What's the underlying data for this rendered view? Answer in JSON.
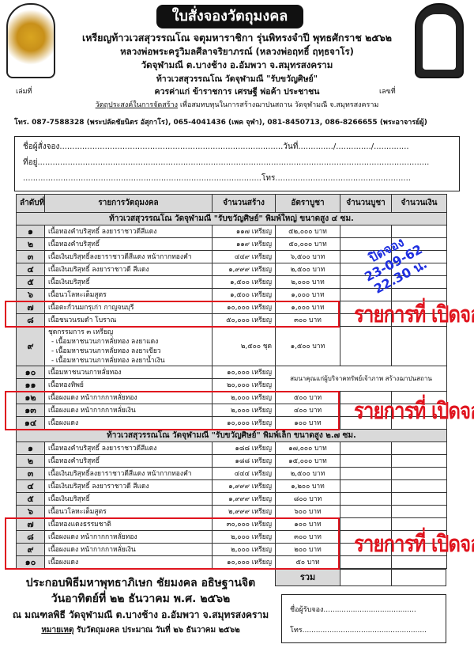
{
  "title": "ใบสั่งจองวัตถุมงคล",
  "header_lines": [
    "เหรียญท้าวเวสสุวรรณโณ จตุมหาราชิกา รุ่นพิทรงจำปี พุทธศักราช ๒๕๖๒",
    "หลวงพ่อพระครูวิมลศีลาจริยาภรณ์ (หลวงพ่อฤทธิ์ ฤทฺธจาโร)",
    "วัดจุฬามณี ต.บางช้าง อ.อัมพวา จ.สมุทรสงคราม",
    "ท้าวเวสสุวรรณโณ วัดจุฬามณี \"รับขวัญศิษย์\"",
    "ควรค่าแก่ ข้าราชการ เศรษฐี พ่อค้า ประชาชน"
  ],
  "purpose_label": "วัตถุประสงค์ในการจัดสร้าง",
  "purpose_text": "เพื่อสมทบทุนในการสร้างฌาปนสถาน วัดจุฬามณี จ.สมุทรสงคราม",
  "phone_line": "โทร. 087-7588328 (พระปลัดชัยนิตร อัสุกาโร), 065-4041436 (เพค จุฬา), 081-8450713, 086-8266655 (พระอาจารย์ผู้)",
  "book_no_label": "เล่มที่",
  "doc_no_label": "เลขที่",
  "form": {
    "name": "ชื่อผู้สั่งจอง.........................................................................................วันที่............../............../..............",
    "address": "ที่อยู่............................................................................................................................................................",
    "phone": "...............................................................................................โทร......................................................"
  },
  "columns": [
    "ลำดับที่",
    "รายการวัตถุมงคล",
    "จำนวนสร้าง",
    "อัตราบูชา",
    "จำนวนบูชา",
    "จำนวนเงิน"
  ],
  "section1": "ท้าวเวสสุวรรณโณ วัดจุฬามณี \"รับขวัญศิษย์\" พิมพ์ใหญ่ ขนาดสูง ๔ ซม.",
  "rows1": [
    [
      "๑",
      "เนื้อทองคำบริสุทธิ์ ลงยาราชาวดีสีแดง",
      "๑๑๗ เหรียญ",
      "๕๒,๐๐๐  บาท"
    ],
    [
      "๒",
      "เนื้อทองคำบริสุทธิ์",
      "๑๑๙ เหรียญ",
      "๕๐,๐๐๐  บาท"
    ],
    [
      "๓",
      "เนื้อเงินบริสุทธิ์ลงยาราชาวดีสีแดง หน้ากากทองคำ",
      "๔๔๙ เหรียญ",
      "๖,๕๐๐  บาท"
    ],
    [
      "๔",
      "เนื้อเงินบริสุทธิ์ ลงยาราชาวดี สีแดง",
      "๑,๙๙๙ เหรียญ",
      "๒,๕๐๐  บาท"
    ],
    [
      "๕",
      "เนื้อเงินบริสุทธิ์",
      "๑,๕๐๐ เหรียญ",
      "๒,๐๐๐  บาท"
    ],
    [
      "๖",
      "เนื้อนวโลหะเต็มสูตร",
      "๑,๕๐๐ เหรียญ",
      "๑,๐๐๐  บาท"
    ],
    [
      "๗",
      "เนื้อตะกั่วนมกรุเก่า กาญจนบุรี",
      "๑๐,๐๐๐ เหรียญ",
      "๑,๐๐๐  บาท"
    ],
    [
      "๘",
      "เนื้อชนวนรมดำ โบราณ",
      "๕๐,๐๐๐ เหรียญ",
      "๓๐๐  บาท"
    ]
  ],
  "row9": {
    "num": "๙",
    "lines": [
      "ชุดกรรมการ ๓ เหรียญ",
      "- เนื้อมหาชนวนกาหลั่ยทอง ลงยาแดง",
      "- เนื้อมหาชนวนกาหลั่ยทอง ลงยาเขียว",
      "- เนื้อมหาชนวนกาหลั่ยทอง ลงยาน้ำเงิน"
    ],
    "qty": "๒,๕๐๐      ชุด",
    "price": "๑,๕๐๐  บาท"
  },
  "rows10_11": [
    [
      "๑๐",
      "เนื้อมหาชนวนกาหลั่ยทอง",
      "๑๐,๐๐๐ เหรียญ"
    ],
    [
      "๑๑",
      "เนื้อทองทิพย์",
      "๒๐,๐๐๐ เหรียญ"
    ]
  ],
  "donor_note": "สมนาคุณแก่ผู้บริจาคทรัพย์เจ้าภาพ สร้างฌาปนสถาน",
  "rows12_14": [
    [
      "๑๒",
      "เนื้อผงแดง หน้ากากกาหลั่ยทอง",
      "๒,๐๐๐ เหรียญ",
      "๕๐๐  บาท"
    ],
    [
      "๑๓",
      "เนื้อผงแดง หน้ากากกาหลั่ยเงิน",
      "๒,๐๐๐ เหรียญ",
      "๔๐๐  บาท"
    ],
    [
      "๑๔",
      "เนื้อผงแดง",
      "๑๐,๐๐๐ เหรียญ",
      "๑๐๐  บาท"
    ]
  ],
  "section2": "ท้าวเวสสุวรรณโณ วัดจุฬามณี \"รับขวัญศิษย์\" พิมพ์เล็ก ขนาดสูง ๒.๗ ซม.",
  "rows2": [
    [
      "๑",
      "เนื้อทองคำบริสุทธิ์ ลงยาราชาวดีสีแดง",
      "๑๘๘ เหรียญ",
      "๑๗,๐๐๐  บาท"
    ],
    [
      "๒",
      "เนื้อทองคำบริสุทธิ์",
      "๑๘๘ เหรียญ",
      "๑๕,๐๐๐  บาท"
    ],
    [
      "๓",
      "เนื้อเงินบริสุทธิ์ลงยาราชาวดีสีแดง หน้ากากทองคำ",
      "๔๔๔ เหรียญ",
      "๒,๕๐๐  บาท"
    ],
    [
      "๔",
      "เนื้อเงินบริสุทธิ์ ลงยาราชาวดี สีแดง",
      "๑,๙๙๙ เหรียญ",
      "๑,๒๐๐  บาท"
    ],
    [
      "๕",
      "เนื้อเงินบริสุทธิ์",
      "๑,๙๙๙ เหรียญ",
      "๘๐๐  บาท"
    ],
    [
      "๖",
      "เนื้อนวโลหะเต็มสูตร",
      "๒,๙๙๙ เหรียญ",
      "๖๐๐  บาท"
    ],
    [
      "๗",
      "เนื้อทองแดงธรรมชาติ",
      "๓๐,๐๐๐ เหรียญ",
      "๑๐๐  บาท"
    ],
    [
      "๘",
      "เนื้อผงแดง หน้ากากกาหลั่ยทอง",
      "๒,๐๐๐ เหรียญ",
      "๓๐๐  บาท"
    ],
    [
      "๙",
      "เนื้อผงแดง หน้ากากกาหลั่ยเงิน",
      "๒,๐๐๐ เหรียญ",
      "๒๐๐  บาท"
    ],
    [
      "๑๐",
      "เนื้อผงแดง",
      "๑๐,๐๐๐ เหรียญ",
      "๕๐  บาท"
    ]
  ],
  "total_label": "รวม",
  "footer": [
    "ประกอบพิธีมหาพุทธาภิเษก ชัยมงคล อธิษฐานจิต",
    "วันอาทิตย์ที่ ๒๒ ธันวาคม พ.ศ. ๒๕๖๒",
    "ณ มณฑลพิธี วัดจุฬามณี  ต.บางช้าง อ.อัมพวา จ.สมุทรสงคราม"
  ],
  "note_label": "หมายเหตุ",
  "note_text": " รับวัตถุมงคล ประมาณ วันที่ ๒๖ ธันวาคม  ๒๕๖๒",
  "receiver": {
    "name": "ชื่อผู้รับจอง.........................................",
    "phone": "โทร......................................................."
  },
  "open_label": "รายการที่ เปิดจอง",
  "watermark": [
    "ปิดจอง",
    "23-09-62",
    "22.30 น."
  ],
  "colors": {
    "highlight": "#e0141e",
    "watermark": "#1f2fe0"
  }
}
